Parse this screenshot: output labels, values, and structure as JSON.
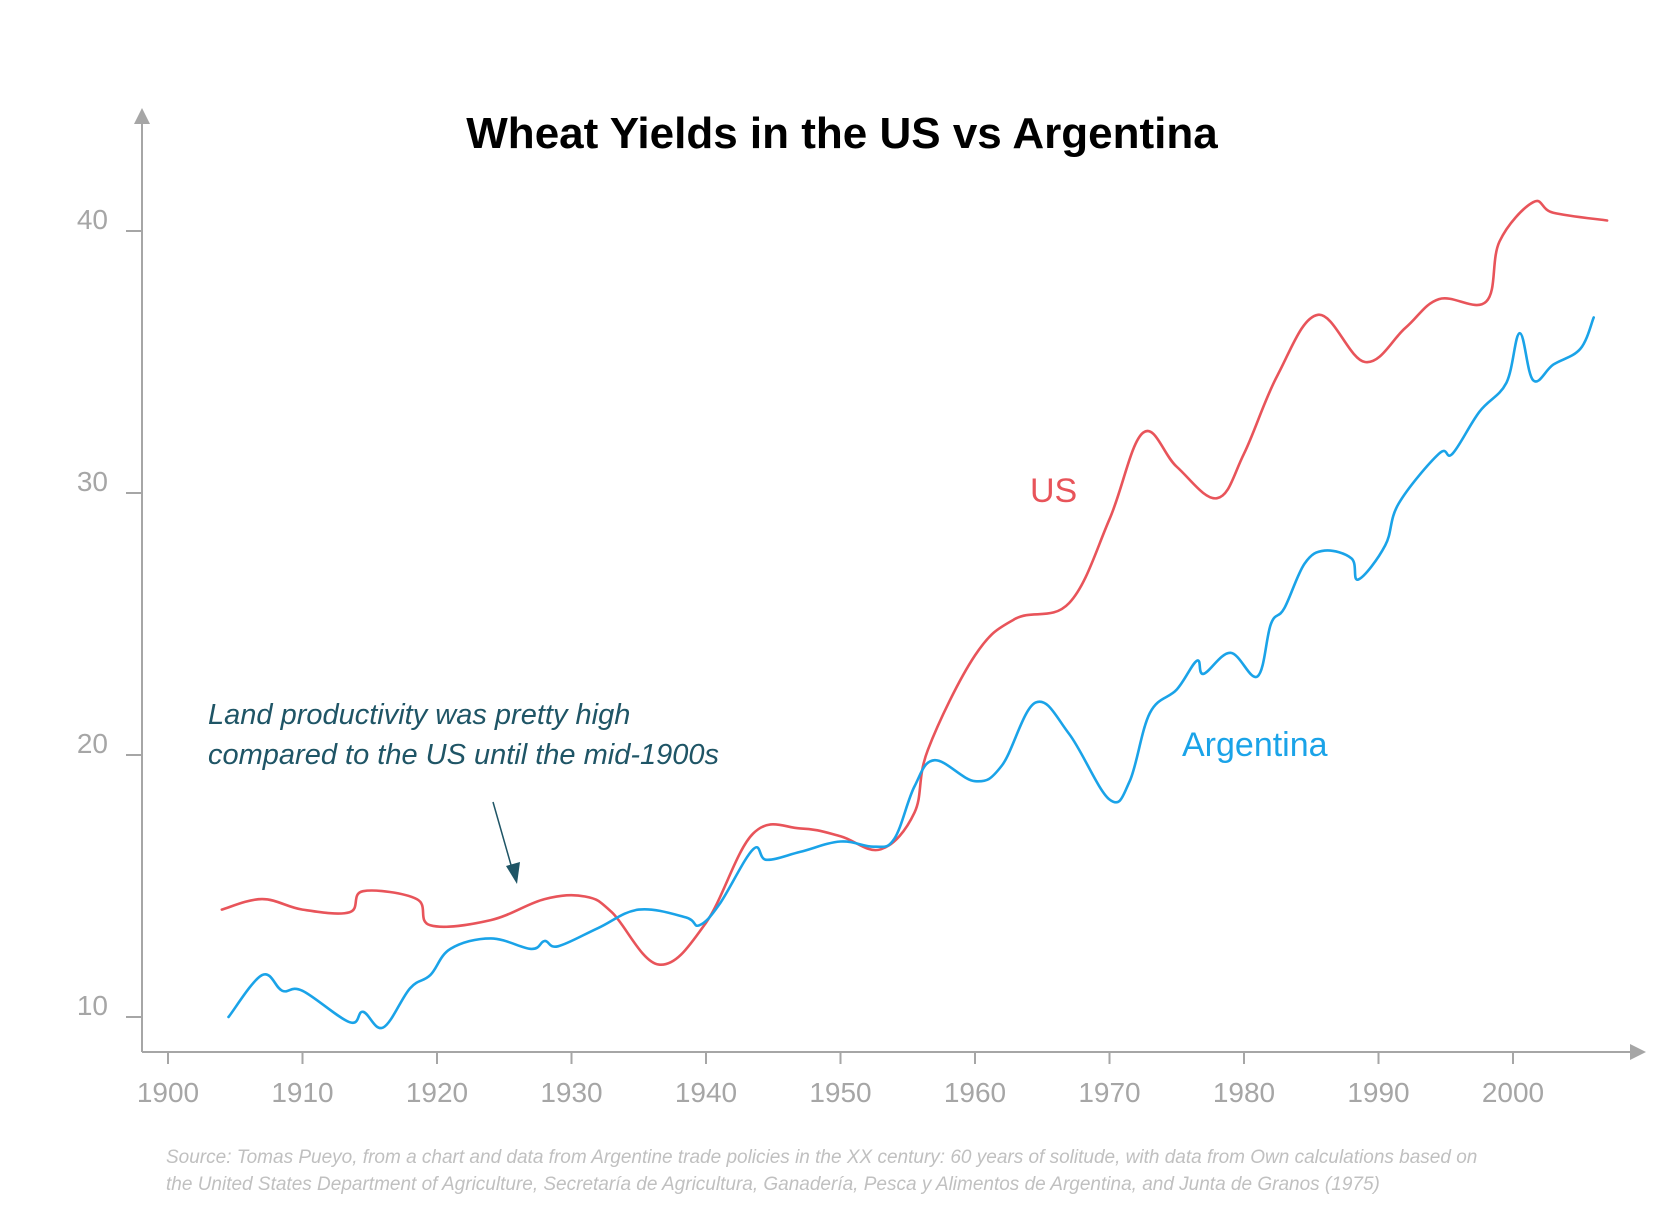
{
  "chart_data": {
    "type": "line",
    "title": "Wheat Yields in the US vs Argentina",
    "xlabel": "",
    "ylabel": "",
    "xlim": [
      1898,
      2010
    ],
    "ylim": [
      8.7,
      45
    ],
    "x_ticks": [
      "1900",
      "1910",
      "1920",
      "1930",
      "1940",
      "1950",
      "1960",
      "1970",
      "1980",
      "1990",
      "2000"
    ],
    "y_ticks": [
      "10",
      "20",
      "30",
      "40"
    ],
    "grid": false,
    "series": [
      {
        "name": "US",
        "color": "#e8545a",
        "x": [
          1904,
          1907,
          1910,
          1913.5,
          1914.5,
          1918.5,
          1919.5,
          1924,
          1928,
          1931,
          1933,
          1936.5,
          1940,
          1943.5,
          1947,
          1950,
          1953,
          1955.5,
          1956.5,
          1960,
          1963,
          1967,
          1970,
          1972.5,
          1975,
          1978,
          1980,
          1982.5,
          1985.5,
          1989,
          1992,
          1994.5,
          1998,
          1999,
          2001.5,
          2003,
          2007
        ],
        "values": [
          14.1,
          14.5,
          14.1,
          14.0,
          14.8,
          14.5,
          13.5,
          13.7,
          14.5,
          14.6,
          14.0,
          12.0,
          13.6,
          17.0,
          17.2,
          16.9,
          16.4,
          17.8,
          20.2,
          23.8,
          25.2,
          25.8,
          29.0,
          32.3,
          31.0,
          29.8,
          31.5,
          34.5,
          36.8,
          35.0,
          36.3,
          37.4,
          37.3,
          39.6,
          41.1,
          40.7,
          40.4
        ]
      },
      {
        "name": "Argentina",
        "color": "#1aa3e8",
        "x": [
          1904.5,
          1907,
          1908.5,
          1910,
          1913.5,
          1914.5,
          1916,
          1918,
          1919.5,
          1921,
          1924,
          1927,
          1928,
          1929,
          1932,
          1935,
          1938.5,
          1939.5,
          1941,
          1943.5,
          1944.5,
          1947,
          1950,
          1952.5,
          1954,
          1955.5,
          1957,
          1960,
          1962,
          1964.5,
          1967,
          1970,
          1971.5,
          1973,
          1975,
          1976.5,
          1977,
          1979,
          1981,
          1982,
          1983,
          1984.5,
          1986,
          1988,
          1988.5,
          1990.5,
          1991.5,
          1994.5,
          1995.5,
          1997.5,
          1999.5,
          2000.5,
          2001.5,
          2003,
          2005,
          2006
        ],
        "values": [
          10.0,
          11.6,
          11.0,
          11.0,
          9.8,
          10.2,
          9.6,
          11.1,
          11.6,
          12.6,
          13.0,
          12.6,
          12.9,
          12.7,
          13.4,
          14.1,
          13.8,
          13.5,
          14.3,
          16.4,
          16.0,
          16.3,
          16.7,
          16.5,
          16.8,
          18.8,
          19.8,
          19.0,
          19.6,
          22.0,
          20.8,
          18.3,
          19.0,
          21.6,
          22.5,
          23.6,
          23.1,
          23.9,
          23.0,
          25.0,
          25.6,
          27.3,
          27.8,
          27.5,
          26.7,
          28.0,
          29.6,
          31.5,
          31.5,
          33.1,
          34.2,
          36.1,
          34.3,
          34.9,
          35.5,
          36.7
        ]
      }
    ],
    "series_labels": {
      "us": "US",
      "argentina": "Argentina"
    },
    "annotation": {
      "line1": "Land productivity was pretty high",
      "line2": "compared to the US until the mid-1900s"
    },
    "source": {
      "line1": "Source: Tomas Pueyo, from a chart and data from Argentine trade policies in the XX century: 60 years of solitude, with data from Own calculations based on",
      "line2": "the United States Department of Agriculture, Secretaría de Agricultura, Ganadería, Pesca y Alimentos de Argentina, and Junta de Granos (1975)"
    },
    "colors": {
      "axis": "#a6a6a6",
      "annotation": "#1f5566"
    }
  }
}
